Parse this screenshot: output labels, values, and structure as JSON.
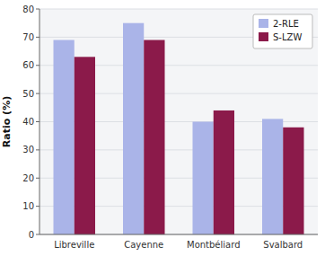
{
  "chart_data": {
    "type": "bar",
    "categories": [
      "Libreville",
      "Cayenne",
      "Montbéliard",
      "Svalbard"
    ],
    "series": [
      {
        "name": "2-RLE",
        "color": "#aab4e8",
        "values": [
          69,
          75,
          40,
          41
        ]
      },
      {
        "name": "S-LZW",
        "color": "#8b1a4a",
        "values": [
          63,
          69,
          44,
          38
        ]
      }
    ],
    "y_label": "Ratio (%)",
    "ylim": [
      0,
      80
    ],
    "yticks": [
      0,
      10,
      20,
      30,
      40,
      50,
      60,
      70,
      80
    ],
    "grid": true,
    "legend": "upper right"
  }
}
